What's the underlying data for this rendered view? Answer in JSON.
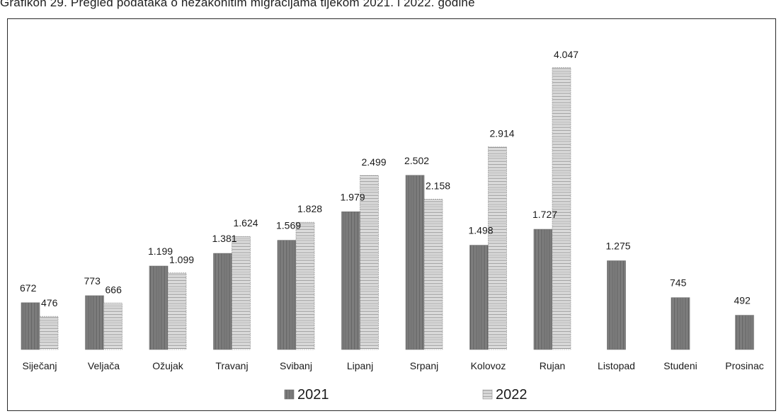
{
  "caption": "Grafikon 29. Pregled podataka o nezakonitim migracijama tijekom 2021. i 2022. godine",
  "chart_data": {
    "type": "bar",
    "categories": [
      "Siječanj",
      "Veljača",
      "Ožujak",
      "Travanj",
      "Svibanj",
      "Lipanj",
      "Srpanj",
      "Kolovoz",
      "Rujan",
      "Listopad",
      "Studeni",
      "Prosinac"
    ],
    "series": [
      {
        "name": "2021",
        "values": [
          672,
          773,
          1199,
          1381,
          1569,
          1979,
          2502,
          1498,
          1727,
          1275,
          745,
          492
        ],
        "labels": [
          "672",
          "773",
          "1.199",
          "1.381",
          "1.569",
          "1.979",
          "2.502",
          "1.498",
          "1.727",
          "1.275",
          "745",
          "492"
        ],
        "color": "#6e6e6e"
      },
      {
        "name": "2022",
        "values": [
          476,
          666,
          1099,
          1624,
          1828,
          2499,
          2158,
          2914,
          4047,
          null,
          null,
          null
        ],
        "labels": [
          "476",
          "666",
          "1.099",
          "1.624",
          "1.828",
          "2.499",
          "2.158",
          "2.914",
          "4.047",
          "",
          "",
          ""
        ],
        "color": "#9a9a9a"
      }
    ],
    "ylim": [
      0,
      4400
    ],
    "grid": false,
    "legend_position": "bottom",
    "xlabel": "",
    "ylabel": ""
  }
}
